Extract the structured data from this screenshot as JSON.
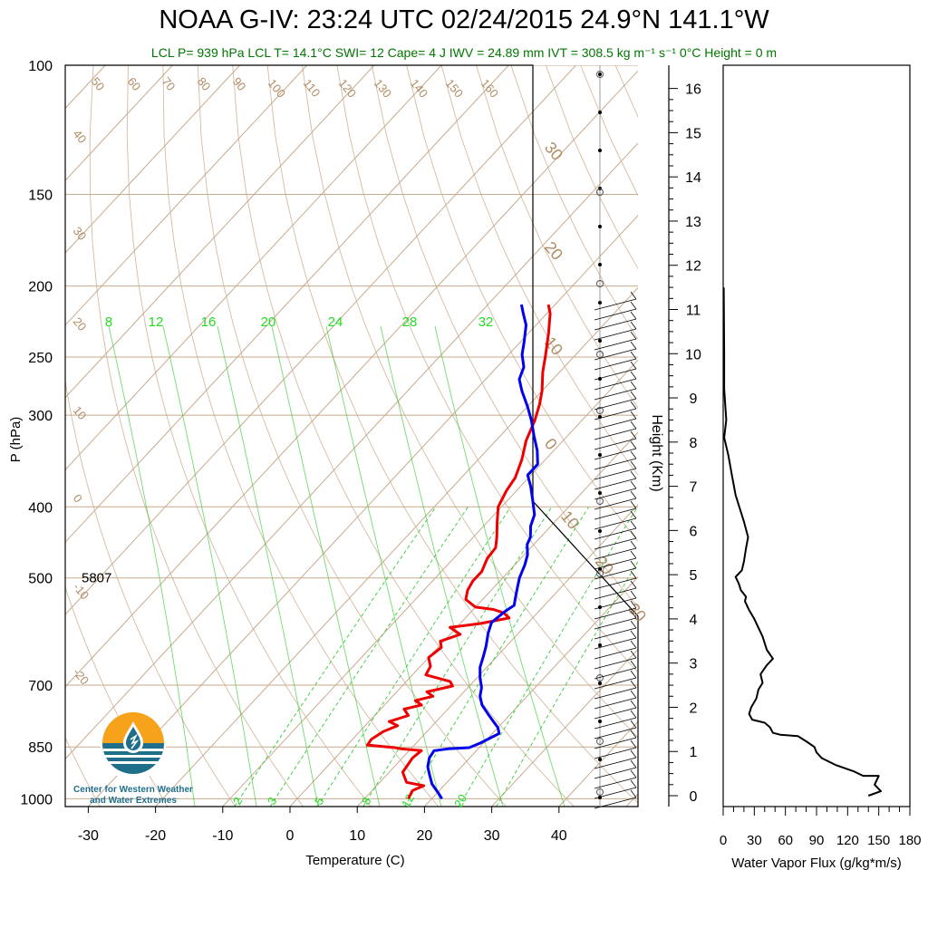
{
  "header": {
    "title": "NOAA G-IV: 23:24 UTC 02/24/2015  24.9°N 141.1°W",
    "subtitle": "LCL P= 939 hPa  LCL T= 14.1°C  SWI= 12  Cape= 4 J  IWV = 24.89 mm  IVT = 308.5 kg m⁻¹ s⁻¹  0°C Height = 0 m"
  },
  "logo": {
    "line1": "Center for Western Weather",
    "line2": "and Water Extremes",
    "icon": "water-drop-logo-icon"
  },
  "colors": {
    "temperature": "#ee0000",
    "dewpoint_line": "#0000ee",
    "isotherm": "#c8aa8c",
    "mixing_ratio": "#33cc33",
    "text_green": "#007700",
    "isotherm_label": "#b08c64"
  },
  "chart_data": [
    {
      "type": "line",
      "subtype": "skew-t",
      "xlabel": "Temperature (C)",
      "ylabel": "P (hPa)",
      "xlim": [
        -35,
        52
      ],
      "ylim": [
        1025,
        100
      ],
      "yscale": "log",
      "xticks": [
        "-30",
        "-20",
        "-10",
        "0",
        "10",
        "20",
        "30",
        "40"
      ],
      "yticks": [
        "100",
        "150",
        "200",
        "250",
        "300",
        "400",
        "500",
        "700",
        "850",
        "1000"
      ],
      "height_label": "5807",
      "height_label_p": 500,
      "isotherm_labels": [
        "50",
        "60",
        "70",
        "80",
        "90",
        "100",
        "110",
        "120",
        "130",
        "140",
        "150",
        "160",
        "40",
        "30",
        "20",
        "10",
        "0",
        "-10",
        "-20",
        "30",
        "20",
        "10",
        "0",
        "10",
        "20",
        "30"
      ],
      "mixing_ratio_labels_top": [
        "8",
        "12",
        "16",
        "20",
        "24",
        "28",
        "32"
      ],
      "mixing_ratio_labels_bottom": [
        "2",
        "3",
        "5",
        "8",
        "12",
        "20"
      ],
      "series": [
        {
          "role": "temperature",
          "points": [
            [
              16.5,
              1000
            ],
            [
              16.0,
              975
            ],
            [
              17.0,
              960
            ],
            [
              14.0,
              950
            ],
            [
              13.0,
              935
            ],
            [
              12.0,
              920
            ],
            [
              11.5,
              880
            ],
            [
              11.8,
              860
            ],
            [
              8.5,
              855
            ],
            [
              7.5,
              852
            ],
            [
              3.0,
              845
            ],
            [
              2.8,
              830
            ],
            [
              3.5,
              810
            ],
            [
              4.8,
              795
            ],
            [
              3.0,
              785
            ],
            [
              5.0,
              770
            ],
            [
              3.5,
              755
            ],
            [
              5.5,
              745
            ],
            [
              4.0,
              735
            ],
            [
              6.0,
              725
            ],
            [
              4.5,
              715
            ],
            [
              7.5,
              702
            ],
            [
              6.5,
              692
            ],
            [
              2.0,
              678
            ],
            [
              1.5,
              660
            ],
            [
              0.0,
              642
            ],
            [
              0.5,
              622
            ],
            [
              -0.5,
              610
            ],
            [
              1.5,
              597
            ],
            [
              -1.0,
              584
            ],
            [
              3.0,
              577
            ],
            [
              6.5,
              567
            ],
            [
              5.0,
              558
            ],
            [
              3.0,
              552
            ],
            [
              0.0,
              548
            ],
            [
              -2.5,
              535
            ],
            [
              -3.5,
              520
            ],
            [
              -4.0,
              505
            ],
            [
              -4.0,
              490
            ],
            [
              -5.0,
              470
            ],
            [
              -5.2,
              455
            ],
            [
              -6.5,
              440
            ],
            [
              -8.5,
              420
            ],
            [
              -10.5,
              400
            ],
            [
              -11.5,
              380
            ],
            [
              -12.0,
              365
            ],
            [
              -13.5,
              345
            ],
            [
              -15.5,
              325
            ],
            [
              -17.0,
              305
            ],
            [
              -18.5,
              290
            ],
            [
              -20.0,
              278
            ],
            [
              -22.5,
              262
            ],
            [
              -24.5,
              248
            ],
            [
              -27.0,
              232
            ],
            [
              -29.5,
              218
            ],
            [
              -31.0,
              212
            ]
          ]
        },
        {
          "role": "dewpoint",
          "points": [
            [
              21.5,
              1000
            ],
            [
              20.0,
              980
            ],
            [
              18.0,
              955
            ],
            [
              16.5,
              930
            ],
            [
              15.0,
              905
            ],
            [
              14.0,
              880
            ],
            [
              13.7,
              860
            ],
            [
              15.5,
              855
            ],
            [
              18.5,
              852
            ],
            [
              19.5,
              840
            ],
            [
              21.0,
              815
            ],
            [
              20.0,
              800
            ],
            [
              18.5,
              785
            ],
            [
              16.5,
              765
            ],
            [
              14.5,
              745
            ],
            [
              13.0,
              725
            ],
            [
              12.0,
              705
            ],
            [
              10.5,
              685
            ],
            [
              9.0,
              662
            ],
            [
              8.0,
              640
            ],
            [
              7.0,
              620
            ],
            [
              5.5,
              595
            ],
            [
              4.5,
              575
            ],
            [
              5.0,
              555
            ],
            [
              5.5,
              545
            ],
            [
              4.5,
              530
            ],
            [
              3.5,
              515
            ],
            [
              2.5,
              500
            ],
            [
              1.5,
              480
            ],
            [
              0.5,
              465
            ],
            [
              -1.0,
              450
            ],
            [
              -1.5,
              440
            ],
            [
              -3.0,
              425
            ],
            [
              -4.0,
              410
            ],
            [
              -6.5,
              390
            ],
            [
              -8.5,
              375
            ],
            [
              -10.5,
              362
            ],
            [
              -10.5,
              350
            ],
            [
              -12.5,
              335
            ],
            [
              -15.0,
              320
            ],
            [
              -17.5,
              305
            ],
            [
              -20.0,
              292
            ],
            [
              -23.0,
              278
            ],
            [
              -25.0,
              268
            ],
            [
              -26.0,
              258
            ],
            [
              -28.0,
              248
            ],
            [
              -29.5,
              238
            ],
            [
              -31.5,
              226
            ],
            [
              -33.5,
              218
            ],
            [
              -35.0,
              212
            ]
          ]
        }
      ]
    },
    {
      "type": "line",
      "xlabel": "Height (Km)",
      "yticks": [
        "0",
        "1",
        "2",
        "3",
        "4",
        "5",
        "6",
        "7",
        "8",
        "9",
        "10",
        "11",
        "12",
        "13",
        "14",
        "15",
        "16"
      ],
      "ylim": [
        0,
        16.3
      ]
    },
    {
      "type": "line",
      "xlabel": "Water Vapor Flux (g/kg*m/s)",
      "xlim": [
        0,
        180
      ],
      "xticks": [
        "0",
        "30",
        "60",
        "90",
        "120",
        "150",
        "180"
      ],
      "ylim": [
        0,
        16.3
      ],
      "points": [
        [
          140,
          0.0
        ],
        [
          152,
          0.1
        ],
        [
          146,
          0.25
        ],
        [
          150,
          0.45
        ],
        [
          135,
          0.45
        ],
        [
          126,
          0.55
        ],
        [
          108,
          0.7
        ],
        [
          95,
          0.85
        ],
        [
          90,
          0.98
        ],
        [
          88,
          1.1
        ],
        [
          82,
          1.2
        ],
        [
          72,
          1.35
        ],
        [
          55,
          1.38
        ],
        [
          48,
          1.42
        ],
        [
          45,
          1.55
        ],
        [
          40,
          1.65
        ],
        [
          28,
          1.72
        ],
        [
          25,
          1.85
        ],
        [
          27,
          2.0
        ],
        [
          32,
          2.2
        ],
        [
          34,
          2.4
        ],
        [
          38,
          2.55
        ],
        [
          36,
          2.75
        ],
        [
          42,
          2.95
        ],
        [
          48,
          3.1
        ],
        [
          42,
          3.3
        ],
        [
          38,
          3.6
        ],
        [
          30,
          4.0
        ],
        [
          25,
          4.2
        ],
        [
          21,
          4.4
        ],
        [
          22,
          4.5
        ],
        [
          17,
          4.65
        ],
        [
          15,
          4.8
        ],
        [
          12,
          4.95
        ],
        [
          18,
          5.1
        ],
        [
          20,
          5.3
        ],
        [
          22,
          5.6
        ],
        [
          24,
          5.85
        ],
        [
          20,
          6.2
        ],
        [
          16,
          6.5
        ],
        [
          12,
          6.8
        ],
        [
          8,
          7.3
        ],
        [
          5,
          7.7
        ],
        [
          1,
          8.1
        ],
        [
          3,
          8.5
        ],
        [
          1,
          9.2
        ],
        [
          1,
          10
        ],
        [
          0.5,
          11.5
        ]
      ]
    }
  ]
}
